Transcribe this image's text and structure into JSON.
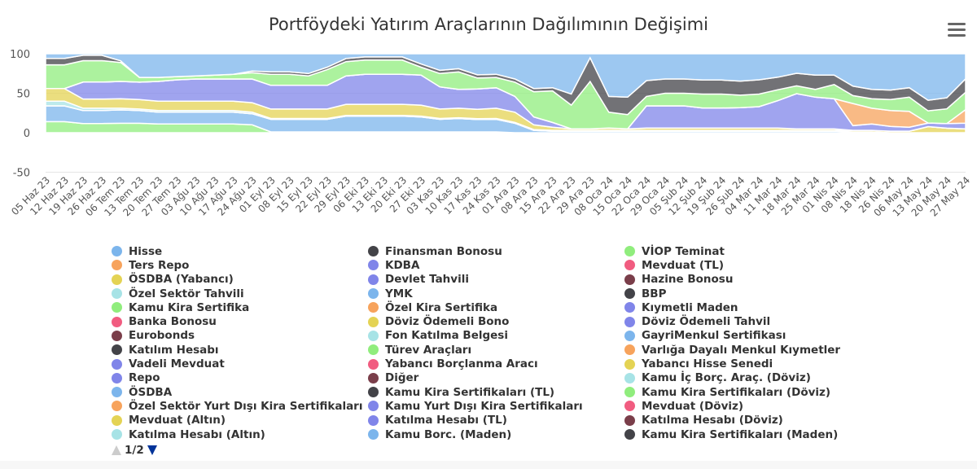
{
  "chart": {
    "title": "Portföydeki Yatırım Araçlarının Dağılımının Değişimi",
    "menu_icon": "hamburger-menu-icon",
    "pager": {
      "text": "1/2",
      "prev_icon": "triangle-up-icon",
      "next_icon": "triangle-down-icon",
      "prev_color": "#cccccc",
      "next_color": "#003399"
    }
  },
  "chart_data": {
    "type": "area",
    "stacked": true,
    "title": "Portföydeki Yatırım Araçlarının Dağılımının Değişimi",
    "xlabel": "",
    "ylabel": "",
    "ylim": [
      -50,
      100
    ],
    "yticks": [
      -50,
      0,
      50,
      100
    ],
    "grid": true,
    "legend_position": "bottom",
    "categories": [
      "05 Haz 23",
      "12 Haz 23",
      "19 Haz 23",
      "26 Haz 23",
      "06 Tem 23",
      "13 Tem 23",
      "20 Tem 23",
      "27 Tem 23",
      "03 Ağu 23",
      "10 Ağu 23",
      "17 Ağu 23",
      "24 Ağu 23",
      "01 Eyl 23",
      "08 Eyl 23",
      "15 Eyl 23",
      "22 Eyl 23",
      "29 Eyl 23",
      "06 Eki 23",
      "13 Eki 23",
      "20 Eki 23",
      "27 Eki 23",
      "03 Kas 23",
      "10 Kas 23",
      "17 Kas 23",
      "24 Kas 23",
      "01 Ara 23",
      "08 Ara 23",
      "15 Ara 23",
      "22 Ara 23",
      "29 Ara 23",
      "08 Oca 24",
      "15 Oca 24",
      "22 Oca 24",
      "29 Oca 24",
      "05 Şub 24",
      "12 Şub 24",
      "19 Şub 24",
      "26 Şub 24",
      "04 Mar 24",
      "11 Mar 24",
      "18 Mar 24",
      "25 Mar 24",
      "01 Nis 24",
      "08 Nis 24",
      "18 Nis 24",
      "26 Nis 24",
      "06 May 24",
      "13 May 24",
      "20 May 24",
      "27 May 24"
    ],
    "series": [
      {
        "name": "Kamu Kira Sertifika",
        "color": "#90ed7d",
        "values": [
          14,
          14,
          12,
          12,
          12,
          12,
          11,
          11,
          11,
          11,
          11,
          10,
          1,
          1,
          1,
          1,
          1,
          1,
          1,
          1,
          1,
          1,
          1,
          1,
          1,
          0,
          0,
          0,
          0,
          0,
          0,
          0,
          0,
          0,
          0,
          0,
          0,
          0,
          0,
          0,
          0,
          0,
          0,
          0,
          0,
          0,
          0,
          0,
          0,
          0
        ]
      },
      {
        "name": "ÖSDBA",
        "color": "#7cb5ec",
        "values": [
          20,
          20,
          17,
          17,
          17,
          16,
          15,
          15,
          15,
          15,
          15,
          14,
          16,
          16,
          16,
          16,
          20,
          20,
          20,
          20,
          19,
          16,
          17,
          16,
          16,
          12,
          3,
          2,
          2,
          2,
          2,
          2,
          2,
          2,
          2,
          2,
          2,
          2,
          2,
          2,
          2,
          2,
          2,
          1,
          1,
          0,
          0,
          0,
          0,
          0
        ]
      },
      {
        "name": "Mevduat (TL)",
        "color": "#e4d354",
        "values": [
          0,
          0,
          0,
          0,
          0,
          0,
          0,
          0,
          0,
          0,
          0,
          0,
          0,
          0,
          0,
          0,
          0,
          0,
          0,
          0,
          0,
          0,
          0,
          0,
          0,
          0,
          0,
          0,
          0,
          0,
          0,
          0,
          0,
          0,
          0,
          0,
          0,
          0,
          0,
          0,
          0,
          0,
          0,
          2,
          2,
          2,
          2,
          7,
          5,
          4
        ]
      },
      {
        "name": "Özel Sektör Tahvili",
        "color": "#a7e3e6",
        "values": [
          6,
          6,
          3,
          3,
          2,
          2,
          2,
          2,
          2,
          2,
          2,
          2,
          1,
          1,
          1,
          1,
          1,
          1,
          1,
          1,
          1,
          1,
          1,
          1,
          1,
          1,
          1,
          1,
          1,
          1,
          1,
          1,
          1,
          1,
          1,
          1,
          1,
          1,
          1,
          1,
          1,
          1,
          1,
          0,
          0,
          0,
          0,
          0,
          0,
          0
        ]
      },
      {
        "name": "ÖSDBA (Yabancı)",
        "color": "#e4d354",
        "values": [
          16,
          16,
          12,
          12,
          12,
          12,
          12,
          12,
          12,
          12,
          12,
          12,
          12,
          12,
          12,
          12,
          14,
          14,
          14,
          14,
          14,
          12,
          12,
          12,
          13,
          13,
          6,
          4,
          2,
          2,
          3,
          2,
          3,
          3,
          3,
          3,
          3,
          3,
          3,
          3,
          2,
          2,
          2,
          0,
          0,
          0,
          0,
          0,
          0,
          0
        ]
      },
      {
        "name": "Devlet Tahvili",
        "color": "#8085e9",
        "values": [
          0,
          0,
          22,
          22,
          22,
          22,
          25,
          27,
          28,
          28,
          28,
          30,
          30,
          30,
          30,
          30,
          36,
          38,
          38,
          38,
          38,
          28,
          24,
          26,
          26,
          20,
          10,
          6,
          0,
          0,
          0,
          0,
          28,
          28,
          28,
          26,
          26,
          26,
          27,
          35,
          45,
          40,
          38,
          6,
          8,
          6,
          5,
          4,
          5,
          6
        ]
      },
      {
        "name": "Özel Kira Sertifika",
        "color": "#f7a35c",
        "values": [
          0,
          0,
          0,
          0,
          0,
          0,
          0,
          0,
          0,
          0,
          0,
          0,
          0,
          0,
          0,
          0,
          0,
          0,
          0,
          0,
          0,
          0,
          0,
          0,
          0,
          0,
          0,
          0,
          0,
          0,
          0,
          0,
          0,
          0,
          0,
          0,
          0,
          0,
          0,
          0,
          0,
          0,
          0,
          28,
          20,
          20,
          20,
          0,
          0,
          14
        ]
      },
      {
        "name": "Türev Araçları",
        "color": "#90ed7d",
        "values": [
          30,
          30,
          28,
          28,
          24,
          6,
          5,
          4,
          4,
          5,
          6,
          8,
          14,
          14,
          12,
          20,
          18,
          18,
          18,
          18,
          10,
          17,
          22,
          14,
          13,
          18,
          32,
          40,
          30,
          60,
          20,
          18,
          12,
          16,
          16,
          18,
          18,
          16,
          16,
          14,
          10,
          10,
          18,
          10,
          12,
          14,
          18,
          14,
          16,
          18
        ]
      },
      {
        "name": "Finansman Bonosu",
        "color": "#434348",
        "values": [
          8,
          8,
          7,
          7,
          2,
          0,
          0,
          0,
          0,
          0,
          0,
          2,
          3,
          3,
          3,
          3,
          4,
          4,
          4,
          4,
          4,
          4,
          4,
          4,
          4,
          4,
          4,
          4,
          14,
          30,
          20,
          22,
          20,
          18,
          18,
          18,
          18,
          18,
          18,
          16,
          16,
          18,
          12,
          12,
          12,
          12,
          12,
          12,
          12,
          14
        ]
      },
      {
        "name": "Hisse",
        "color": "#7cb5ec",
        "values": [
          6,
          6,
          2,
          2,
          9,
          30,
          30,
          29,
          28,
          27,
          26,
          22,
          23,
          23,
          25,
          17,
          6,
          4,
          4,
          4,
          13,
          21,
          19,
          27,
          26,
          32,
          44,
          43,
          51,
          5,
          54,
          55,
          34,
          32,
          32,
          34,
          34,
          35,
          33,
          30,
          25,
          27,
          27,
          41,
          45,
          46,
          43,
          53,
          48,
          26
        ]
      }
    ],
    "legend": [
      [
        "Hisse",
        "#7cb5ec"
      ],
      [
        "Ters Repo",
        "#f7a35c"
      ],
      [
        "ÖSDBA (Yabancı)",
        "#e4d354"
      ],
      [
        "Özel Sektör Tahvili",
        "#a7e3e6"
      ],
      [
        "Kamu Kira Sertifika",
        "#90ed7d"
      ],
      [
        "Banka Bonosu",
        "#f15c80"
      ],
      [
        "Eurobonds",
        "#7a3e4a"
      ],
      [
        "Katılım Hesabı",
        "#434348"
      ],
      [
        "Vadeli Mevduat",
        "#8085e9"
      ],
      [
        "Repo",
        "#8085e9"
      ],
      [
        "ÖSDBA",
        "#7cb5ec"
      ],
      [
        "Özel Sektör Yurt Dışı Kira Sertifikaları",
        "#f7a35c"
      ],
      [
        "Mevduat (Altın)",
        "#e4d354"
      ],
      [
        "Katılma Hesabı (Altın)",
        "#a7e3e6"
      ],
      [
        "Finansman Bonosu",
        "#434348"
      ],
      [
        "KDBA",
        "#8085e9"
      ],
      [
        "Devlet Tahvili",
        "#8085e9"
      ],
      [
        "YMK",
        "#7cb5ec"
      ],
      [
        "Özel Kira Sertifika",
        "#f7a35c"
      ],
      [
        "Döviz Ödemeli Bono",
        "#e4d354"
      ],
      [
        "Fon Katılma Belgesi",
        "#a7e3e6"
      ],
      [
        "Türev Araçları",
        "#90ed7d"
      ],
      [
        "Yabancı Borçlanma Aracı",
        "#f15c80"
      ],
      [
        "Diğer",
        "#7a3e4a"
      ],
      [
        "Kamu Kira Sertifikaları (TL)",
        "#434348"
      ],
      [
        "Kamu Yurt Dışı Kira Sertifikaları",
        "#8085e9"
      ],
      [
        "Katılma Hesabı (TL)",
        "#8085e9"
      ],
      [
        "Kamu Borc. (Maden)",
        "#7cb5ec"
      ],
      [
        "VİOP Teminat",
        "#90ed7d"
      ],
      [
        "Mevduat (TL)",
        "#f15c80"
      ],
      [
        "Hazine Bonosu",
        "#7a3e4a"
      ],
      [
        "BBP",
        "#434348"
      ],
      [
        "Kıymetli Maden",
        "#8085e9"
      ],
      [
        "Döviz Ödemeli Tahvil",
        "#8085e9"
      ],
      [
        "GayriMenkul Sertifikası",
        "#7cb5ec"
      ],
      [
        "Varlığa Dayalı Menkul Kıymetler",
        "#f7a35c"
      ],
      [
        "Yabancı Hisse Senedi",
        "#e4d354"
      ],
      [
        "Kamu İç Borç. Araç. (Döviz)",
        "#a7e3e6"
      ],
      [
        "Kamu Kira Sertifikaları (Döviz)",
        "#90ed7d"
      ],
      [
        "Mevduat (Döviz)",
        "#f15c80"
      ],
      [
        "Katılma Hesabı (Döviz)",
        "#7a3e4a"
      ],
      [
        "Kamu Kira Sertifikaları (Maden)",
        "#434348"
      ]
    ]
  }
}
